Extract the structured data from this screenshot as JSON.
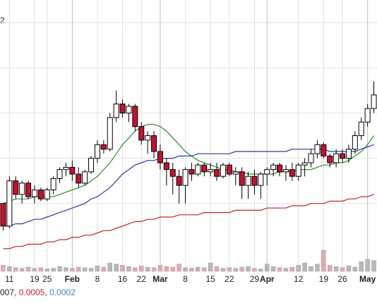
{
  "chart_data": {
    "type": "candlestick",
    "corner_label": "2",
    "categories": [
      null,
      "11",
      null,
      null,
      null,
      "19",
      null,
      "25",
      null,
      null,
      null,
      "Feb",
      null,
      null,
      null,
      "8",
      null,
      null,
      null,
      "16",
      null,
      null,
      "22",
      null,
      null,
      "Mar",
      null,
      null,
      null,
      "8",
      null,
      null,
      null,
      "15",
      null,
      null,
      "22",
      null,
      null,
      null,
      "29",
      null,
      "Apr",
      null,
      null,
      null,
      null,
      "12",
      null,
      null,
      null,
      "19",
      null,
      null,
      "26",
      null,
      null,
      null,
      "May",
      null
    ],
    "open": [
      0.0004,
      0.0003,
      0.0005,
      0.00044,
      0.00049,
      0.00043,
      0.00046,
      0.00042,
      0.00046,
      0.00051,
      0.00055,
      0.00056,
      0.00053,
      0.00049,
      0.00054,
      0.0006,
      0.00066,
      0.00064,
      0.00078,
      0.00084,
      0.0008,
      0.00083,
      0.00074,
      0.00068,
      0.0007,
      0.00063,
      0.00058,
      0.00055,
      0.00052,
      0.00048,
      0.00055,
      0.00053,
      0.00057,
      0.00054,
      0.00055,
      0.00052,
      0.00057,
      0.00053,
      0.00054,
      0.00048,
      0.00052,
      0.00048,
      0.00053,
      0.00055,
      0.00057,
      0.00054,
      0.00055,
      0.00052,
      0.00057,
      0.00058,
      0.00062,
      0.00066,
      0.00061,
      0.00058,
      0.00062,
      0.0006,
      0.00064,
      0.0007,
      0.00076,
      0.00082
    ],
    "high": [
      0.0004,
      0.00052,
      0.00052,
      0.0005,
      0.0005,
      0.00048,
      0.00047,
      0.00047,
      0.00052,
      0.00056,
      0.00058,
      0.00059,
      0.00056,
      0.00055,
      0.00061,
      0.00068,
      0.00068,
      0.0008,
      0.0009,
      0.00086,
      0.00084,
      0.00084,
      0.00076,
      0.00072,
      0.00072,
      0.00066,
      0.0006,
      0.00058,
      0.00055,
      0.00056,
      0.00058,
      0.00058,
      0.00058,
      0.00058,
      0.00058,
      0.00058,
      0.00058,
      0.00056,
      0.00056,
      0.00054,
      0.00055,
      0.00054,
      0.00056,
      0.00058,
      0.00058,
      0.00057,
      0.00058,
      0.00058,
      0.0006,
      0.00064,
      0.00068,
      0.00067,
      0.00062,
      0.00064,
      0.00064,
      0.00066,
      0.00072,
      0.00078,
      0.00084,
      0.00094
    ],
    "low": [
      0.00028,
      0.00029,
      0.00042,
      0.0004,
      0.00042,
      0.0004,
      0.00041,
      0.00041,
      0.00044,
      0.00049,
      0.00052,
      0.0005,
      0.00047,
      0.00048,
      0.00053,
      0.00058,
      0.00062,
      0.00063,
      0.00076,
      0.00078,
      0.00076,
      0.00072,
      0.00066,
      0.00062,
      0.0006,
      0.00055,
      0.00048,
      0.00044,
      0.0004,
      0.0004,
      0.0005,
      0.00052,
      0.00052,
      0.00052,
      0.0005,
      0.00051,
      0.00052,
      0.00048,
      0.00042,
      0.00042,
      0.00044,
      0.00042,
      0.00048,
      0.00052,
      0.00052,
      0.0005,
      0.0005,
      0.0005,
      0.00052,
      0.00056,
      0.0006,
      0.0006,
      0.00056,
      0.00056,
      0.00058,
      0.00058,
      0.00062,
      0.00068,
      0.00074,
      0.0008
    ],
    "close": [
      0.0003,
      0.0005,
      0.00044,
      0.00049,
      0.00043,
      0.00046,
      0.00042,
      0.00046,
      0.00051,
      0.00055,
      0.00056,
      0.00053,
      0.00049,
      0.00054,
      0.0006,
      0.00066,
      0.00064,
      0.00078,
      0.00084,
      0.0008,
      0.00083,
      0.00074,
      0.00068,
      0.0007,
      0.00063,
      0.00058,
      0.00055,
      0.00052,
      0.00048,
      0.00055,
      0.00053,
      0.00057,
      0.00054,
      0.00055,
      0.00052,
      0.00057,
      0.00053,
      0.00054,
      0.00048,
      0.00052,
      0.00048,
      0.00053,
      0.00055,
      0.00057,
      0.00054,
      0.00055,
      0.00052,
      0.00057,
      0.00058,
      0.00062,
      0.00066,
      0.00061,
      0.00058,
      0.00062,
      0.0006,
      0.00064,
      0.0007,
      0.00076,
      0.00082,
      0.00088
    ],
    "up_color": "#ffffff",
    "down_color": "#c8102e",
    "series": [
      {
        "color": "#2e8b2e",
        "values": [
          0.0004,
          0.00041,
          0.00042,
          0.00042,
          0.00042,
          0.00043,
          0.00043,
          0.00043,
          0.00043,
          0.00044,
          0.00045,
          0.00046,
          0.00047,
          0.00048,
          0.0005,
          0.00052,
          0.00055,
          0.00058,
          0.00062,
          0.00066,
          0.00069,
          0.00072,
          0.00074,
          0.00075,
          0.00075,
          0.00074,
          0.00072,
          0.00069,
          0.00066,
          0.00063,
          0.00061,
          0.00059,
          0.00058,
          0.00057,
          0.00056,
          0.00055,
          0.00055,
          0.00054,
          0.00054,
          0.00053,
          0.00053,
          0.00053,
          0.00053,
          0.00053,
          0.00054,
          0.00054,
          0.00054,
          0.00055,
          0.00055,
          0.00055,
          0.00056,
          0.00057,
          0.00057,
          0.00058,
          0.00058,
          0.00059,
          0.00061,
          0.00063,
          0.00066,
          0.0007
        ]
      },
      {
        "color": "#2b3a9a",
        "values": [
          0.0003,
          0.0003,
          0.00031,
          0.00031,
          0.00032,
          0.00033,
          0.00033,
          0.00034,
          0.00035,
          0.00036,
          0.00037,
          0.00038,
          0.00039,
          0.0004,
          0.00042,
          0.00043,
          0.00045,
          0.00047,
          0.0005,
          0.00053,
          0.00055,
          0.00057,
          0.00058,
          0.00059,
          0.00059,
          0.0006,
          0.0006,
          0.0006,
          0.00061,
          0.00061,
          0.00061,
          0.00062,
          0.00062,
          0.00062,
          0.00062,
          0.00062,
          0.00062,
          0.00063,
          0.00063,
          0.00063,
          0.00063,
          0.00063,
          0.00063,
          0.00063,
          0.00063,
          0.00063,
          0.00064,
          0.00064,
          0.00064,
          0.00064,
          0.00064,
          0.00064,
          0.00063,
          0.00063,
          0.00063,
          0.00063,
          0.00063,
          0.00064,
          0.00065,
          0.00066
        ]
      },
      {
        "color": "#c8202e",
        "values": [
          0.0002,
          0.0002,
          0.00021,
          0.00021,
          0.00022,
          0.00022,
          0.00022,
          0.00023,
          0.00023,
          0.00024,
          0.00024,
          0.00025,
          0.00025,
          0.00026,
          0.00026,
          0.00027,
          0.00028,
          0.00028,
          0.00029,
          0.0003,
          0.00031,
          0.00032,
          0.00032,
          0.00033,
          0.00033,
          0.00034,
          0.00034,
          0.00034,
          0.00035,
          0.00035,
          0.00035,
          0.00035,
          0.00036,
          0.00036,
          0.00036,
          0.00036,
          0.00036,
          0.00037,
          0.00037,
          0.00037,
          0.00037,
          0.00037,
          0.00038,
          0.00038,
          0.00038,
          0.00038,
          0.00039,
          0.00039,
          0.00039,
          0.0004,
          0.0004,
          0.0004,
          0.00041,
          0.00041,
          0.00041,
          0.00042,
          0.00042,
          0.00043,
          0.00043,
          0.00044
        ]
      }
    ],
    "volume": [
      10,
      8,
      6,
      5,
      7,
      5,
      6,
      4,
      5,
      8,
      6,
      5,
      7,
      6,
      5,
      9,
      7,
      14,
      12,
      10,
      8,
      6,
      9,
      7,
      6,
      10,
      8,
      7,
      12,
      6,
      5,
      7,
      6,
      14,
      8,
      5,
      6,
      5,
      7,
      8,
      5,
      4,
      12,
      8,
      6,
      5,
      7,
      10,
      14,
      8,
      12,
      35,
      10,
      8,
      6,
      9,
      7,
      16,
      20,
      18
    ],
    "volume_color": "#b8b8b8",
    "volume_down_color": "#e8a8b0",
    "vlim": [
      0,
      100
    ],
    "ylim": [
      0.0001,
      0.0013
    ],
    "yticks": [
      0.0004,
      0.0006,
      0.0008,
      0.001,
      0.0012
    ],
    "grid": true,
    "legend_items": [
      {
        "label": "007",
        "color": "#222222"
      },
      {
        "label": "0.0005",
        "color": "#c8202e"
      },
      {
        "label": "0.0002",
        "color": "#3b86c6"
      }
    ],
    "legend_separator": ", "
  }
}
